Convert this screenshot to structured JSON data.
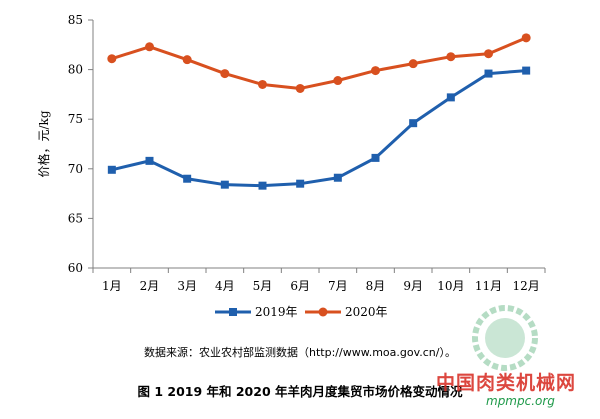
{
  "chart_data": {
    "type": "line",
    "title": "",
    "xlabel": "",
    "ylabel": "价格，元/kg",
    "ylim": [
      60,
      85
    ],
    "yticks": [
      60,
      65,
      70,
      75,
      80,
      85
    ],
    "categories": [
      "1月",
      "2月",
      "3月",
      "4月",
      "5月",
      "6月",
      "7月",
      "8月",
      "9月",
      "10月",
      "11月",
      "12月"
    ],
    "series": [
      {
        "name": "2019年",
        "color": "#1f5fad",
        "marker": "square",
        "values": [
          69.9,
          70.8,
          69.0,
          68.4,
          68.3,
          68.5,
          69.1,
          71.1,
          74.6,
          77.2,
          79.6,
          79.9
        ]
      },
      {
        "name": "2020年",
        "color": "#d8501f",
        "marker": "circle",
        "values": [
          81.1,
          82.3,
          81.0,
          79.6,
          78.5,
          78.1,
          78.9,
          79.9,
          80.6,
          81.3,
          81.6,
          83.2
        ]
      }
    ],
    "grid": false,
    "legend": "bottom"
  },
  "source_note": "数据来源：农业农村部监测数据（http://www.moa.gov.cn/）。",
  "figure_caption": "图 1    2019 年和 2020 年羊肉月度集贸市场价格变动情况",
  "watermark": {
    "site_name": "中国肉类机械网",
    "url": "mpmpc.org"
  }
}
